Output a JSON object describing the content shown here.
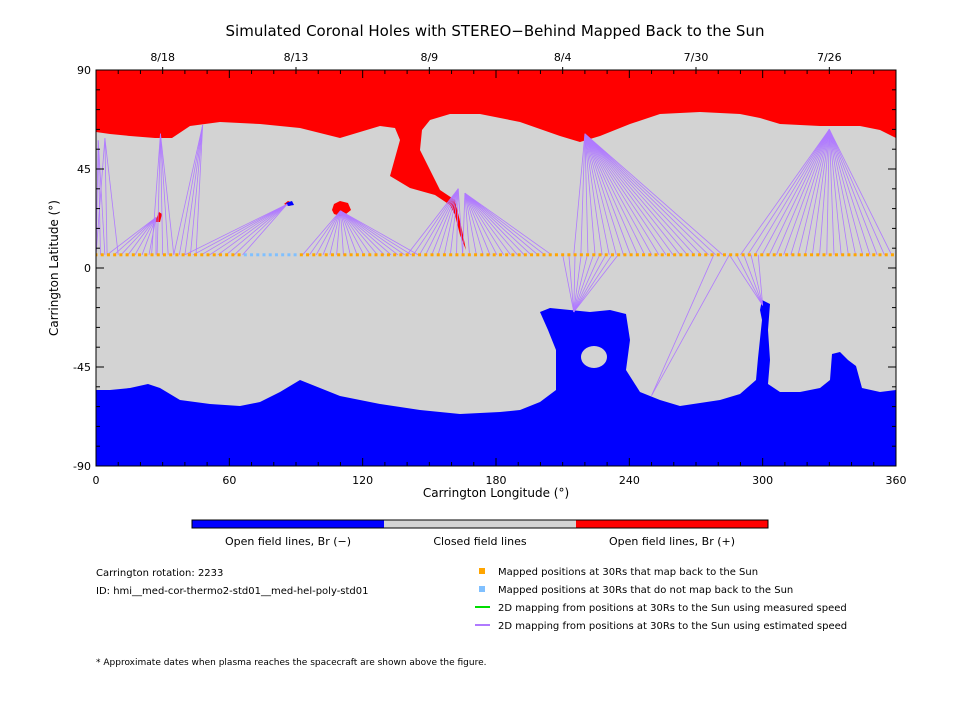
{
  "chart_data": {
    "type": "map",
    "title": "Simulated Coronal Holes with STEREO−Behind Mapped Back to the Sun",
    "xlabel": "Carrington Longitude (°)",
    "ylabel": "Carrington Latitude (°)",
    "xlim": [
      0,
      360
    ],
    "ylim": [
      -90,
      90
    ],
    "x_ticks": [
      "0",
      "60",
      "120",
      "180",
      "240",
      "300",
      "360"
    ],
    "y_ticks": [
      "90",
      "45",
      "0",
      "-45",
      "-90"
    ],
    "top_dates": [
      {
        "lon": 30,
        "label": "8/18"
      },
      {
        "lon": 90,
        "label": "8/13"
      },
      {
        "lon": 150,
        "label": "8/9"
      },
      {
        "lon": 210,
        "label": "8/4"
      },
      {
        "lon": 270,
        "label": "7/30"
      },
      {
        "lon": 330,
        "label": "7/26"
      }
    ],
    "colors": {
      "open_negative": "#0000ff",
      "closed": "#d3d3d3",
      "open_positive": "#ff0000",
      "mapped_orange": "#ffa500",
      "unmapped_blue": "#80c0ff",
      "measured_line": "#00dd00",
      "estimated_line": "#b07aff"
    },
    "colorbar": [
      {
        "label": "Open field lines, Br (−)",
        "color": "#0000ff"
      },
      {
        "label": "Closed field lines",
        "color": "#d3d3d3"
      },
      {
        "label": "Open field lines, Br (+)",
        "color": "#ff0000"
      }
    ],
    "points_lat": 6,
    "unmapped_lon_range": [
      67,
      92
    ],
    "field_line_groups": [
      {
        "target": [
          1,
          58
        ],
        "lon_from": 0,
        "lon_to": 4,
        "n": 3
      },
      {
        "target": [
          4,
          59
        ],
        "lon_from": 0,
        "lon_to": 10,
        "n": 3
      },
      {
        "target": [
          29,
          61
        ],
        "lon_from": 25,
        "lon_to": 35,
        "n": 5
      },
      {
        "target": [
          27,
          23
        ],
        "lon_from": 5,
        "lon_to": 27,
        "n": 8
      },
      {
        "target": [
          48,
          65
        ],
        "lon_from": 35,
        "lon_to": 45,
        "n": 5
      },
      {
        "target": [
          86,
          29
        ],
        "lon_from": 40,
        "lon_to": 66,
        "n": 8
      },
      {
        "target": [
          110,
          26
        ],
        "lon_from": 93,
        "lon_to": 145,
        "n": 18
      },
      {
        "target": [
          163,
          36
        ],
        "lon_from": 140,
        "lon_to": 165,
        "n": 10
      },
      {
        "target": [
          166,
          34
        ],
        "lon_from": 165,
        "lon_to": 205,
        "n": 14
      },
      {
        "target": [
          220,
          61
        ],
        "lon_from": 215,
        "lon_to": 282,
        "n": 22
      },
      {
        "target": [
          215,
          -20
        ],
        "lon_from": 210,
        "lon_to": 235,
        "n": 10
      },
      {
        "target": [
          250,
          -58
        ],
        "lon_from": 278,
        "lon_to": 285,
        "n": 2
      },
      {
        "target": [
          300,
          -17
        ],
        "lon_from": 285,
        "lon_to": 298,
        "n": 5
      },
      {
        "target": [
          330,
          63
        ],
        "lon_from": 290,
        "lon_to": 358,
        "n": 22
      }
    ]
  },
  "info": {
    "rotation_label": "Carrington rotation: 2233",
    "id_label": "ID: hmi__med-cor-thermo2-std01__med-hel-poly-std01"
  },
  "legend": [
    {
      "label": "Mapped positions at 30Rs that map back to the Sun",
      "type": "square",
      "color": "#ffa500"
    },
    {
      "label": "Mapped positions at 30Rs that do not map back to the Sun",
      "type": "square",
      "color": "#80c0ff"
    },
    {
      "label": "2D mapping from positions at 30Rs to the Sun using measured speed",
      "type": "line",
      "color": "#00dd00"
    },
    {
      "label": "2D mapping from positions at 30Rs to the Sun using estimated speed",
      "type": "line",
      "color": "#b07aff"
    }
  ],
  "footnote": "* Approximate dates when plasma reaches the spacecraft are shown above the figure."
}
